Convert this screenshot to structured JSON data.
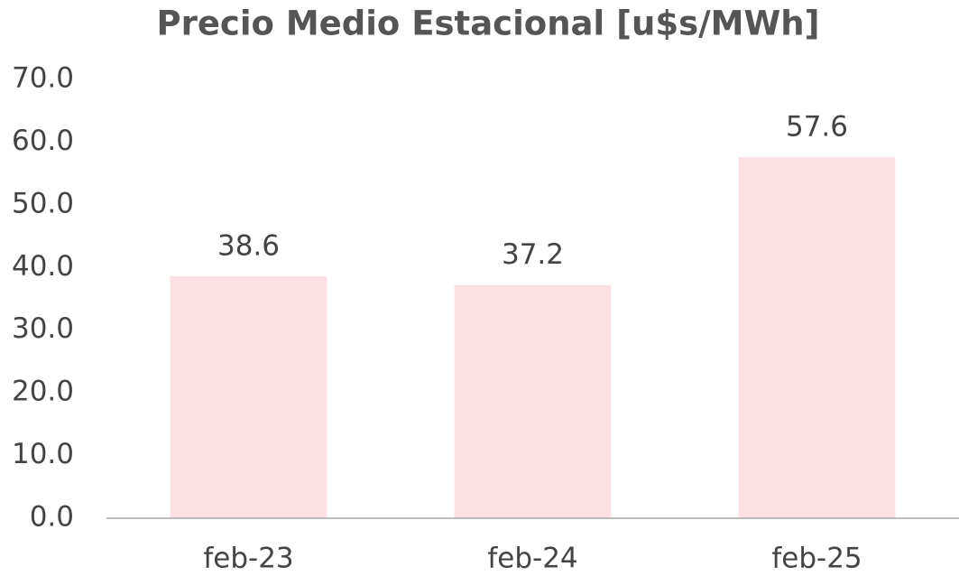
{
  "chart_data": {
    "type": "bar",
    "title": "Precio Medio Estacional [u$s/MWh]",
    "categories": [
      "feb-23",
      "feb-24",
      "feb-25"
    ],
    "values": [
      38.6,
      37.2,
      57.6
    ],
    "color": "#fde0e4",
    "ylim": [
      0,
      70
    ],
    "yticks": [
      {
        "value": 0,
        "label": "0.0"
      },
      {
        "value": 10,
        "label": "10.0"
      },
      {
        "value": 20,
        "label": "20.0"
      },
      {
        "value": 30,
        "label": "30.0"
      },
      {
        "value": 40,
        "label": "40.0"
      },
      {
        "value": 50,
        "label": "50.0"
      },
      {
        "value": 60,
        "label": "60.0"
      },
      {
        "value": 70,
        "label": "70.0"
      }
    ],
    "grid": false
  }
}
